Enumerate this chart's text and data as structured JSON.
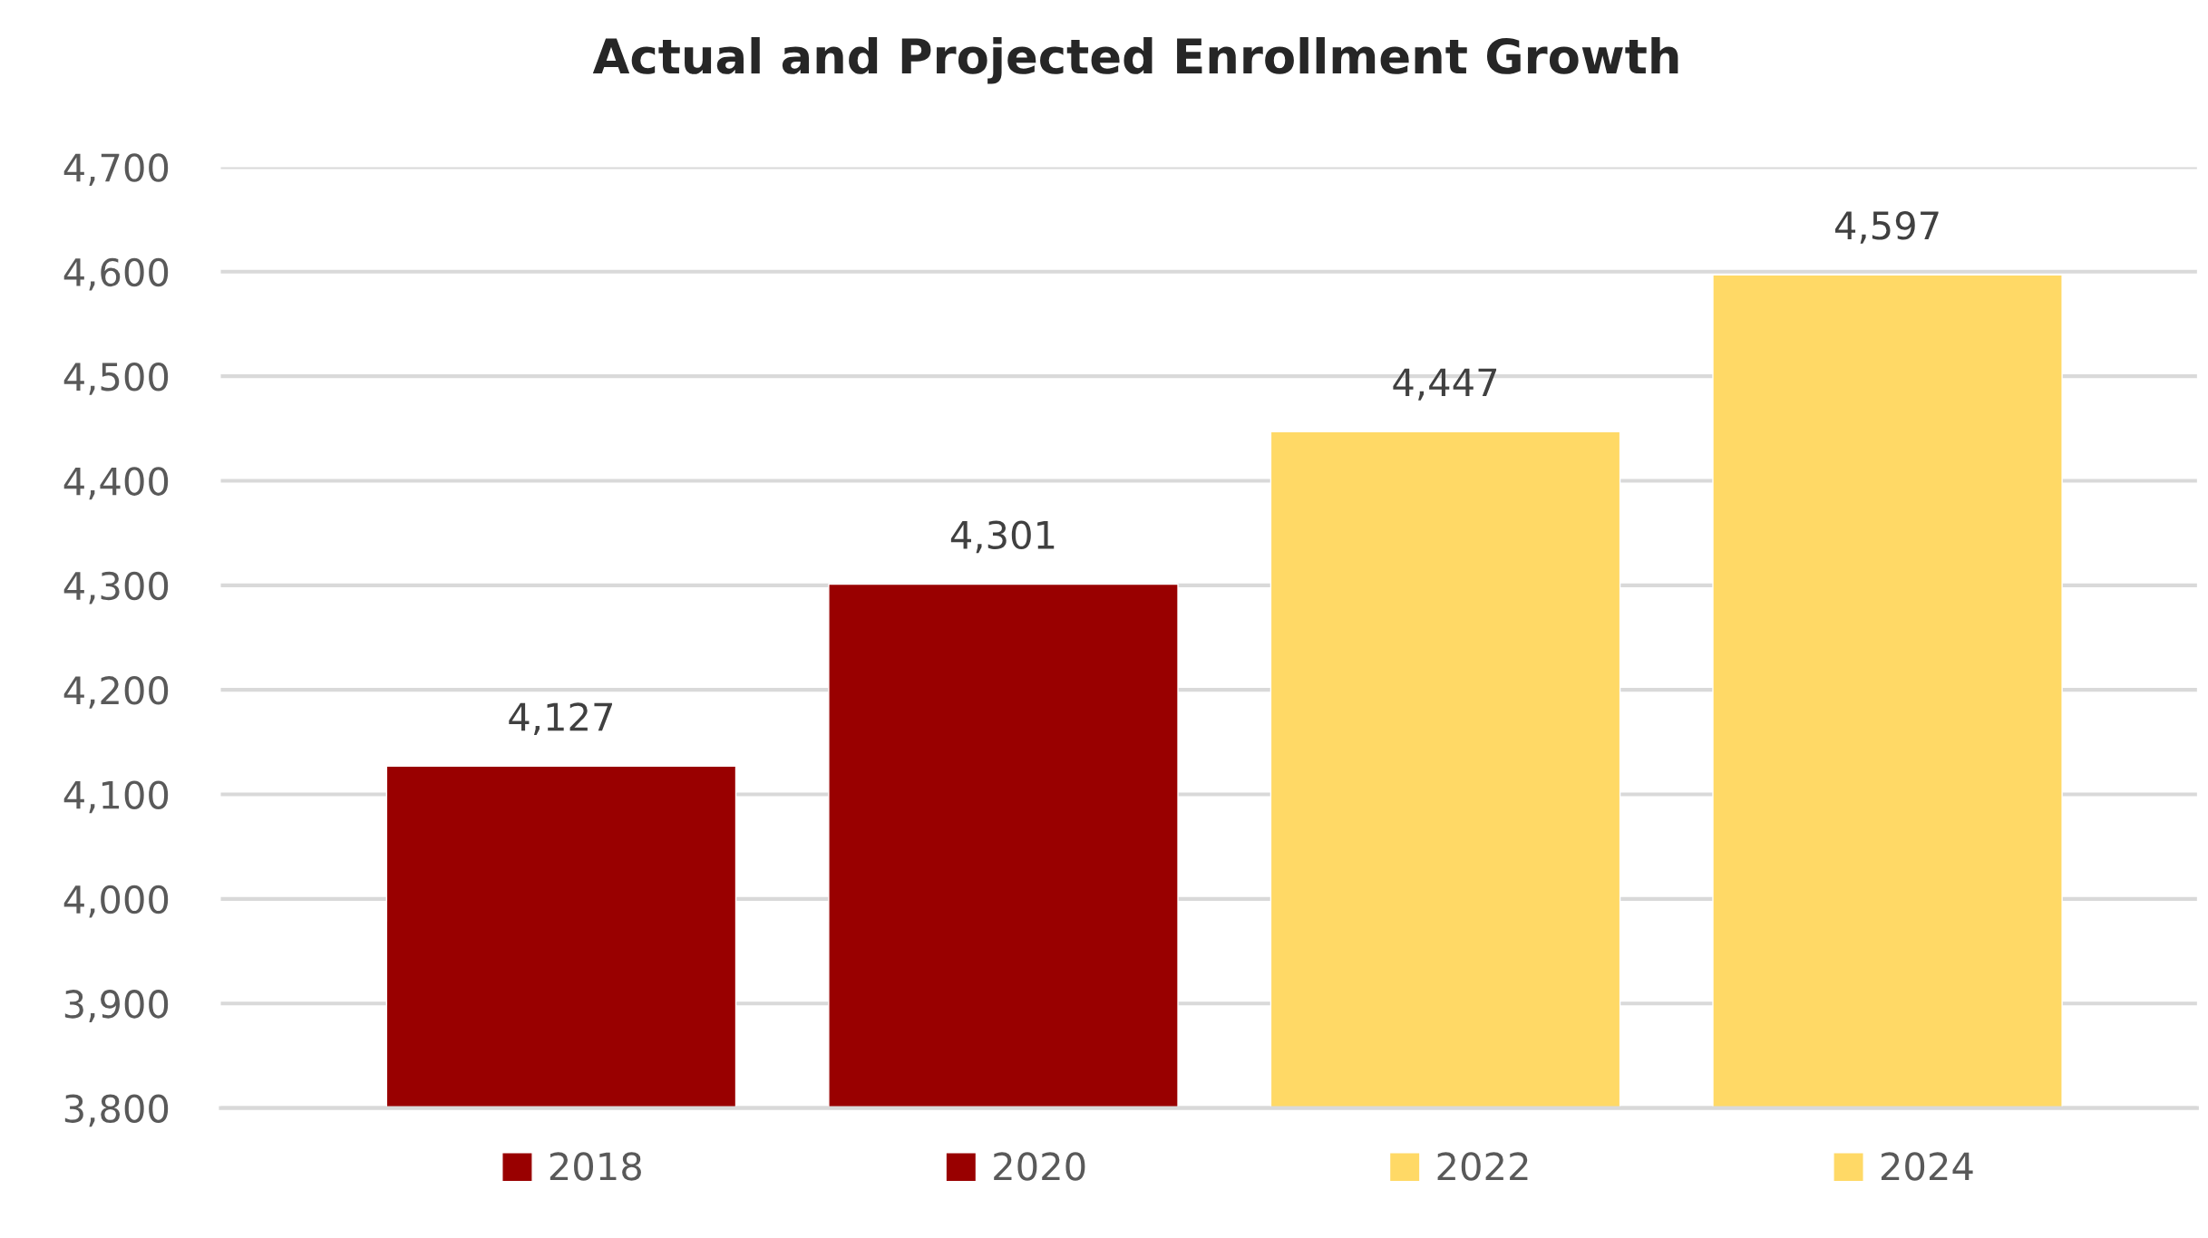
{
  "chart_data": {
    "type": "bar",
    "title": "Actual and Projected Enrollment Growth",
    "categories": [
      null,
      null,
      null,
      null
    ],
    "series": [
      {
        "name": "2018",
        "color": "#990000",
        "values": [
          4127,
          null,
          null,
          null
        ],
        "value_labels": [
          "4,127",
          null,
          null,
          null
        ]
      },
      {
        "name": "2020",
        "color": "#990000",
        "values": [
          null,
          4301,
          null,
          null
        ],
        "value_labels": [
          null,
          "4,301",
          null,
          null
        ]
      },
      {
        "name": "2022",
        "color": "#ffd966",
        "values": [
          null,
          null,
          4447,
          null
        ],
        "value_labels": [
          null,
          null,
          "4,447",
          null
        ]
      },
      {
        "name": "2024",
        "color": "#ffd966",
        "values": [
          null,
          null,
          null,
          4597
        ],
        "value_labels": [
          null,
          null,
          null,
          "4,597"
        ]
      }
    ],
    "ylim": [
      3800,
      4700
    ],
    "yticks": [
      {
        "value": 3800,
        "label": "3,800"
      },
      {
        "value": 3900,
        "label": "3,900"
      },
      {
        "value": 4000,
        "label": "4,000"
      },
      {
        "value": 4100,
        "label": "4,100"
      },
      {
        "value": 4200,
        "label": "4,200"
      },
      {
        "value": 4300,
        "label": "4,300"
      },
      {
        "value": 4400,
        "label": "4,400"
      },
      {
        "value": 4500,
        "label": "4,500"
      },
      {
        "value": 4600,
        "label": "4,600"
      },
      {
        "value": 4700,
        "label": "4,700"
      }
    ],
    "grid": "y",
    "legend": "bottom"
  }
}
